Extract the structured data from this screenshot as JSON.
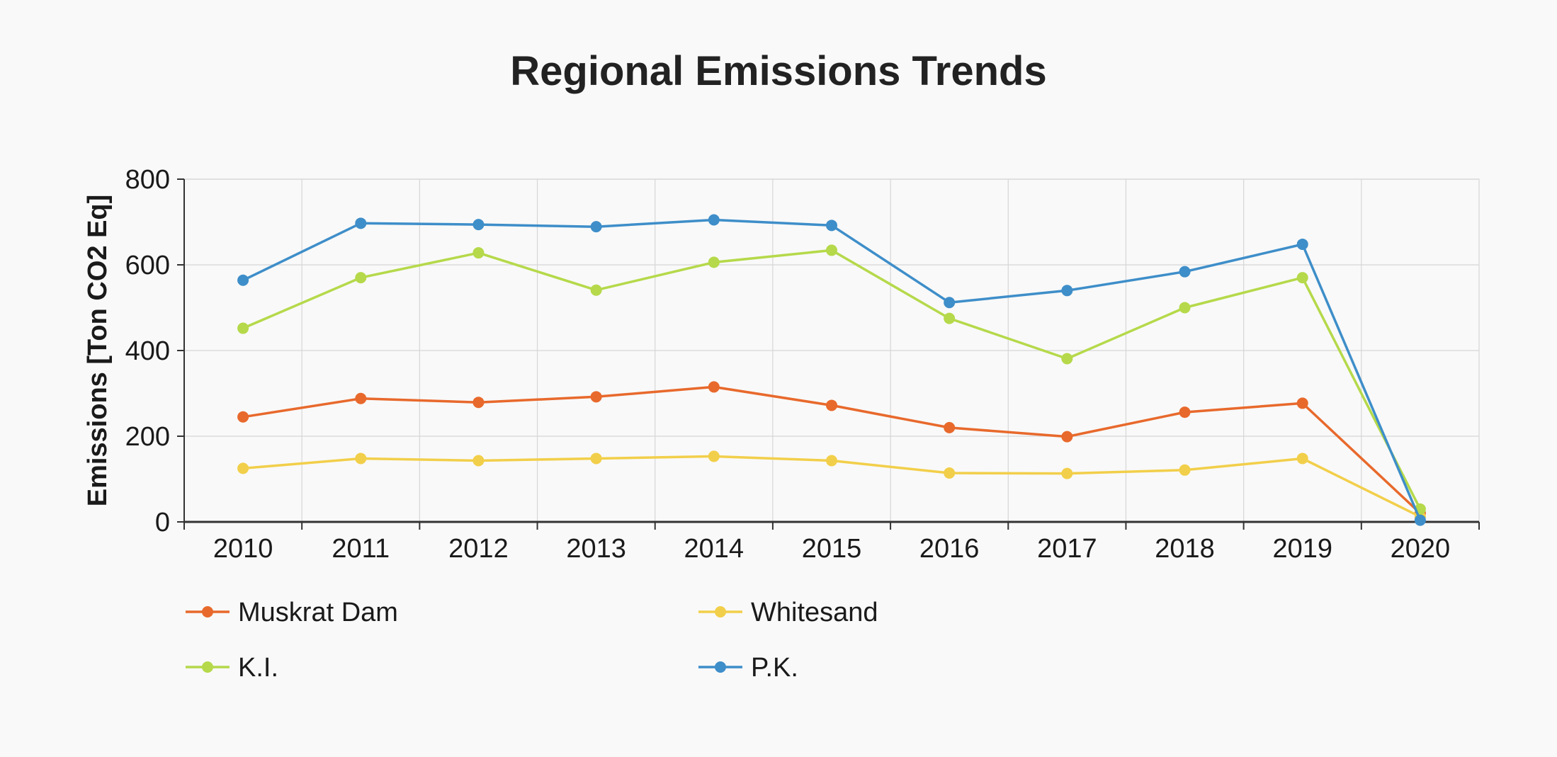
{
  "chart_data": {
    "type": "line",
    "title": "Regional Emissions Trends",
    "xlabel": "",
    "ylabel": "Emissions [Ton CO2 Eq]",
    "ylim": [
      0,
      800
    ],
    "yticks": [
      0,
      200,
      400,
      600,
      800
    ],
    "grid": true,
    "legend_position": "bottom-left",
    "categories": [
      "2010",
      "2011",
      "2012",
      "2013",
      "2014",
      "2015",
      "2016",
      "2017",
      "2018",
      "2019",
      "2020"
    ],
    "series": [
      {
        "name": "Muskrat Dam",
        "color": "#e8692c",
        "values": [
          245,
          288,
          279,
          292,
          315,
          272,
          220,
          199,
          256,
          277,
          20
        ]
      },
      {
        "name": "Whitesand",
        "color": "#f2cf4a",
        "values": [
          125,
          148,
          143,
          148,
          153,
          143,
          114,
          113,
          121,
          148,
          12
        ]
      },
      {
        "name": "K.I.",
        "color": "#b5d94a",
        "values": [
          452,
          570,
          628,
          541,
          606,
          634,
          475,
          381,
          500,
          570,
          30
        ]
      },
      {
        "name": "P.K.",
        "color": "#3e8ec9",
        "values": [
          564,
          697,
          694,
          689,
          705,
          692,
          512,
          540,
          584,
          648,
          4
        ]
      }
    ]
  }
}
